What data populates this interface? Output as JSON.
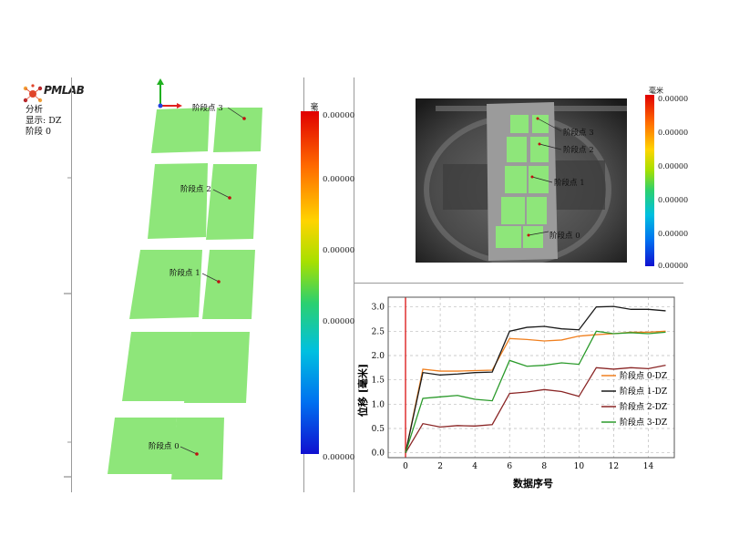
{
  "logo": {
    "text": "PMLAB",
    "icon": "molecule-logo-icon",
    "colors": [
      "#e0452b",
      "#f2a33a",
      "#b5272d"
    ]
  },
  "info": {
    "line1": "分析",
    "line2": "显示: DZ",
    "line3": "阶段 0"
  },
  "left_view": {
    "axis_colors": {
      "x": "#e02020",
      "y": "#20b020",
      "z": "#2040e0"
    },
    "point_labels": [
      "阶段点 3",
      "阶段点 2",
      "阶段点 1",
      "阶段点 0"
    ],
    "patch_color": "#8ee67a"
  },
  "colorbar_main": {
    "unit": "毫米",
    "ticks": [
      "0.00000",
      "0.00000",
      "0.00000",
      "0.00000",
      "0.00000"
    ]
  },
  "camera_view": {
    "point_labels": [
      "阶段点 3",
      "阶段点 2",
      "阶段点 1",
      "阶段点 0"
    ]
  },
  "colorbar_small": {
    "unit": "毫米",
    "ticks": [
      "0.00000",
      "0.00000",
      "0.00000",
      "0.00000",
      "0.00000",
      "0.00000"
    ]
  },
  "chart_data": {
    "type": "line",
    "xlabel": "数据序号",
    "ylabel": "位移 [毫米]",
    "xlim": [
      -1,
      15.5
    ],
    "ylim": [
      -0.1,
      3.2
    ],
    "xticks": [
      0,
      2,
      4,
      6,
      8,
      10,
      12,
      14
    ],
    "yticks": [
      "0.0",
      "0.5",
      "1.0",
      "1.5",
      "2.0",
      "2.5",
      "3.0"
    ],
    "grid": true,
    "legend_position": "bottom-right",
    "marker_line": {
      "x": 0,
      "color": "#e03030"
    },
    "x": [
      0,
      1,
      2,
      3,
      4,
      5,
      6,
      7,
      8,
      9,
      10,
      11,
      12,
      13,
      14,
      15
    ],
    "series": [
      {
        "name": "阶段点 0-DZ",
        "color": "#f08020",
        "values": [
          0.0,
          1.72,
          1.68,
          1.68,
          1.69,
          1.7,
          2.35,
          2.33,
          2.3,
          2.32,
          2.4,
          2.43,
          2.45,
          2.48,
          2.48,
          2.5
        ]
      },
      {
        "name": "阶段点 1-DZ",
        "color": "#1a1a1a",
        "values": [
          0.0,
          1.65,
          1.6,
          1.62,
          1.65,
          1.66,
          2.5,
          2.58,
          2.6,
          2.55,
          2.53,
          3.0,
          3.01,
          2.95,
          2.95,
          2.92
        ]
      },
      {
        "name": "阶段点 2-DZ",
        "color": "#8a2525",
        "values": [
          0.0,
          0.6,
          0.53,
          0.56,
          0.55,
          0.58,
          1.22,
          1.25,
          1.3,
          1.26,
          1.16,
          1.75,
          1.72,
          1.75,
          1.73,
          1.8
        ]
      },
      {
        "name": "阶段点 3-DZ",
        "color": "#2a9a2a",
        "values": [
          0.0,
          1.12,
          1.15,
          1.18,
          1.1,
          1.07,
          1.9,
          1.78,
          1.8,
          1.85,
          1.82,
          2.5,
          2.45,
          2.47,
          2.45,
          2.48
        ]
      }
    ]
  }
}
